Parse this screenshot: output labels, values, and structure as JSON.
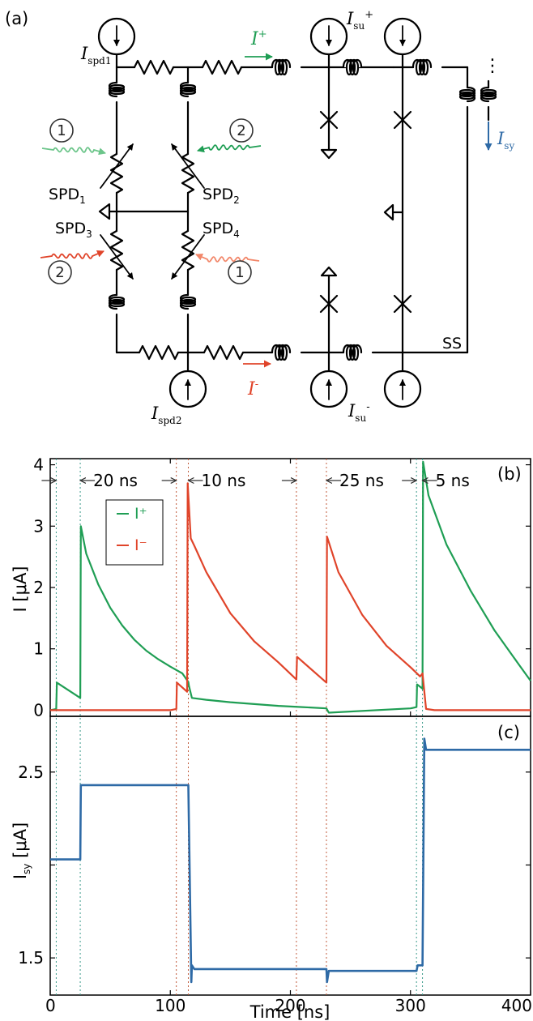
{
  "colors": {
    "green": "#1f9e54",
    "light_green": "#6cc58a",
    "red": "#e0442a",
    "light_red": "#f2876a",
    "blue": "#2e6aa6",
    "black": "#000000",
    "grid_green": "#3a9a8a",
    "grid_red": "#c05a3a"
  },
  "circuit": {
    "panel_label": "(a)",
    "labels": {
      "i_spd1_main": "I",
      "i_spd1_sub": "spd1",
      "i_spd2_main": "I",
      "i_spd2_sub": "spd2",
      "i_su_plus_main": "I",
      "i_su_plus_sub": "su",
      "i_su_plus_sup": "+",
      "i_su_minus_main": "I",
      "i_su_minus_sub": "su",
      "i_su_minus_sup": "-",
      "i_plus_main": "I",
      "i_plus_sup": "+",
      "i_minus_main": "I",
      "i_minus_sup": "-",
      "i_sy_main": "I",
      "i_sy_sub": "sy",
      "spd1_main": "SPD",
      "spd1_sub": "1",
      "spd2_main": "SPD",
      "spd2_sub": "2",
      "spd3_main": "SPD",
      "spd3_sub": "3",
      "spd4_main": "SPD",
      "spd4_sub": "4",
      "ss": "SS",
      "photon_1a": "1",
      "photon_2a": "2",
      "photon_2b": "2",
      "photon_1b": "1",
      "ellipsis": "⋮"
    },
    "icons": [
      "current-source-icon",
      "inductor-icon",
      "resistor-icon",
      "josephson-junction-icon",
      "ground-icon",
      "photon-icon"
    ]
  },
  "chart_data": [
    {
      "type": "line",
      "panel_label": "(b)",
      "title": "",
      "xlabel": "",
      "ylabel": "I [μA]",
      "xlim": [
        0,
        400
      ],
      "ylim": [
        -0.1,
        4.1
      ],
      "y_ticks": [
        0,
        1,
        2,
        3,
        4
      ],
      "legend": {
        "placement": "top-left",
        "entries": [
          "I⁺",
          "I⁻"
        ]
      },
      "annotations": [
        "20 ns",
        "10 ns",
        "25 ns",
        "5 ns"
      ],
      "series": [
        {
          "name": "I⁺",
          "color": "#1f9e54",
          "x": [
            0,
            5,
            5.5,
            25,
            25.5,
            30,
            40,
            50,
            60,
            70,
            80,
            90,
            100,
            110,
            115,
            115.5,
            118,
            130,
            150,
            170,
            190,
            210,
            230,
            232,
            300,
            305,
            305.5,
            310,
            310.5,
            315,
            330,
            350,
            370,
            390,
            400
          ],
          "y": [
            0,
            0.02,
            0.45,
            0.2,
            3.0,
            2.55,
            2.05,
            1.67,
            1.38,
            1.15,
            0.97,
            0.83,
            0.71,
            0.6,
            0.46,
            0.4,
            0.2,
            0.17,
            0.13,
            0.1,
            0.07,
            0.05,
            0.03,
            -0.04,
            0.03,
            0.05,
            0.42,
            0.35,
            4.05,
            3.5,
            2.7,
            1.95,
            1.3,
            0.75,
            0.48
          ]
        },
        {
          "name": "I⁻",
          "color": "#e0442a",
          "x": [
            0,
            100,
            105,
            105.5,
            114,
            114.5,
            117,
            120,
            130,
            150,
            170,
            190,
            205,
            205.5,
            230,
            230.5,
            240,
            260,
            280,
            300,
            308,
            310,
            313,
            320,
            400
          ],
          "y": [
            0,
            0,
            0.02,
            0.45,
            0.3,
            3.7,
            2.8,
            2.68,
            2.25,
            1.58,
            1.12,
            0.78,
            0.5,
            0.87,
            0.45,
            2.83,
            2.25,
            1.55,
            1.05,
            0.7,
            0.55,
            0.6,
            0.02,
            0.0,
            0.0
          ]
        }
      ]
    },
    {
      "type": "line",
      "panel_label": "(c)",
      "title": "",
      "xlabel": "Time [ns]",
      "ylabel": "I_sy [μA]",
      "xlim": [
        0,
        400
      ],
      "ylim": [
        1.3,
        2.8
      ],
      "y_ticks": [
        1.5,
        2.0,
        2.5
      ],
      "y_tick_labels": [
        "1.5",
        "",
        "2.5"
      ],
      "x_ticks": [
        0,
        100,
        200,
        300,
        400
      ],
      "series": [
        {
          "name": "I_sy",
          "color": "#2e6aa6",
          "x": [
            0,
            25,
            25.5,
            115,
            117.5,
            118,
            120,
            230,
            230.5,
            232,
            305,
            306,
            310,
            311.5,
            313,
            400
          ],
          "y": [
            2.03,
            2.03,
            2.43,
            2.43,
            1.37,
            1.46,
            1.44,
            1.44,
            1.37,
            1.43,
            1.43,
            1.46,
            1.46,
            2.68,
            2.62,
            2.62
          ]
        }
      ]
    }
  ],
  "event_lines": {
    "green_times": [
      5,
      25,
      305,
      310
    ],
    "red_times": [
      105,
      115,
      205,
      230
    ]
  }
}
